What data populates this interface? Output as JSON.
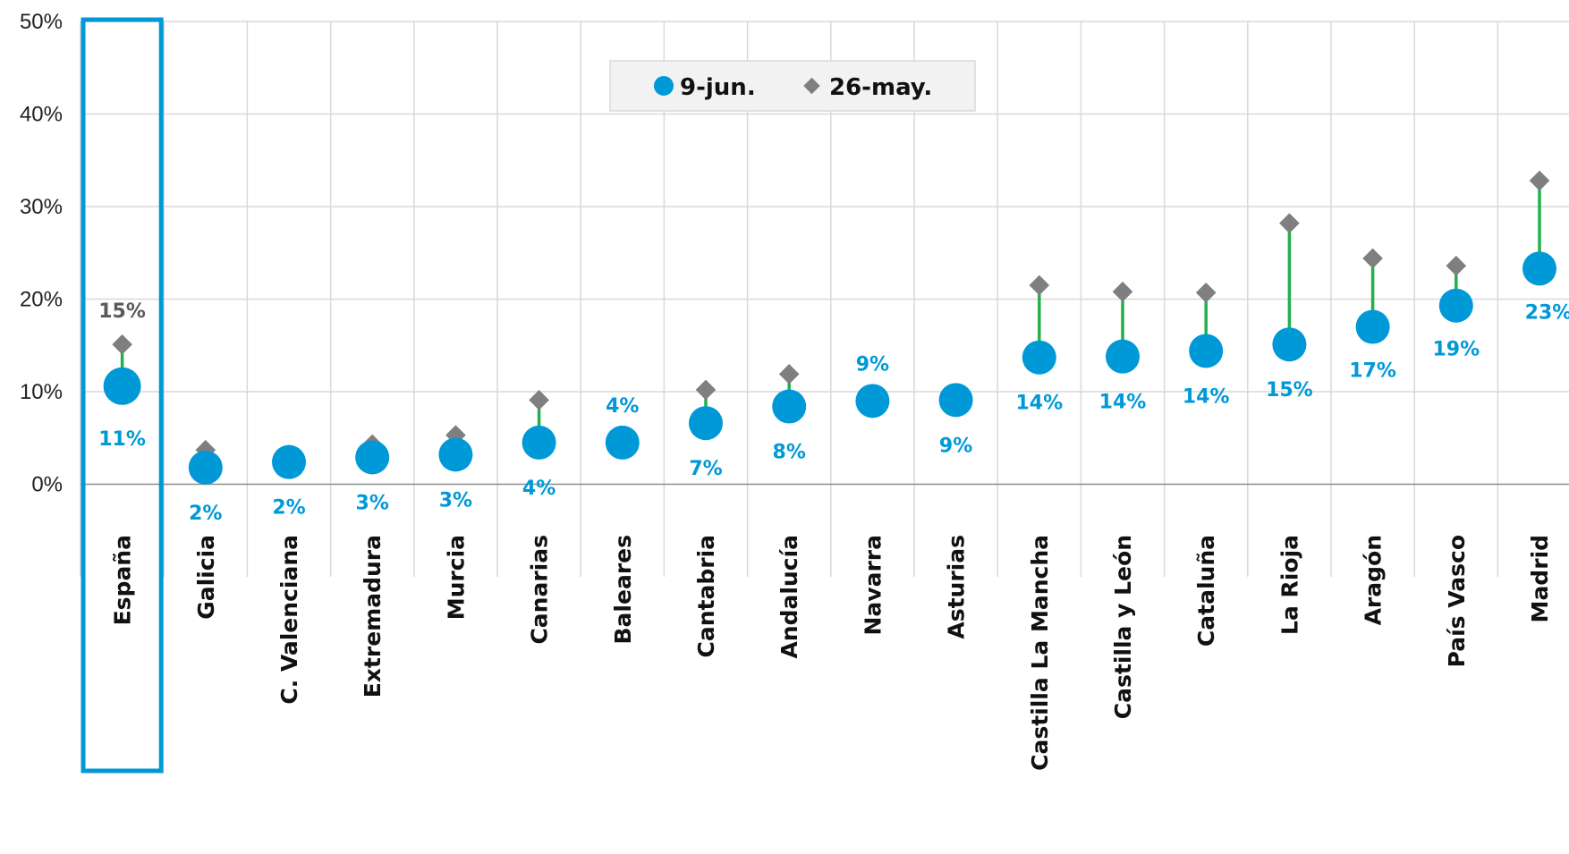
{
  "chart_data": {
    "type": "scatter",
    "categories": [
      "España",
      "Galicia",
      "C. Valenciana",
      "Extremadura",
      "Murcia",
      "Canarias",
      "Baleares",
      "Cantabria",
      "Andalucía",
      "Navarra",
      "Asturias",
      "Castilla La Mancha",
      "Castilla y León",
      "Cataluña",
      "La Rioja",
      "Aragón",
      "País Vasco",
      "Madrid"
    ],
    "series": [
      {
        "name": "9-jun.",
        "values": [
          10.6,
          1.8,
          2.4,
          2.9,
          3.2,
          4.5,
          4.5,
          6.6,
          8.4,
          9.0,
          9.1,
          13.7,
          13.8,
          14.4,
          15.1,
          17.0,
          19.3,
          23.3
        ],
        "labels": [
          "11%",
          "2%",
          "2%",
          "3%",
          "3%",
          "4%",
          "4%",
          "7%",
          "8%",
          "9%",
          "9%",
          "14%",
          "14%",
          "14%",
          "15%",
          "17%",
          "19%",
          "23%"
        ],
        "color": "#0099D8"
      },
      {
        "name": "26-may.",
        "values": [
          15.1,
          3.7,
          3.2,
          4.3,
          5.3,
          9.1,
          4.0,
          10.2,
          11.9,
          8.5,
          9.5,
          21.5,
          20.8,
          20.7,
          28.2,
          24.4,
          23.6,
          32.8
        ],
        "labels": [
          "15%"
        ],
        "color": "#7F7F7F"
      }
    ],
    "connector_color": "#22B04B",
    "ylim": [
      -10,
      50
    ],
    "yticks": [
      "0%",
      "10%",
      "20%",
      "30%",
      "40%",
      "50%"
    ],
    "grid": true,
    "legend": "top-center",
    "highlight": {
      "category": "España",
      "color": "#0099D8"
    }
  }
}
